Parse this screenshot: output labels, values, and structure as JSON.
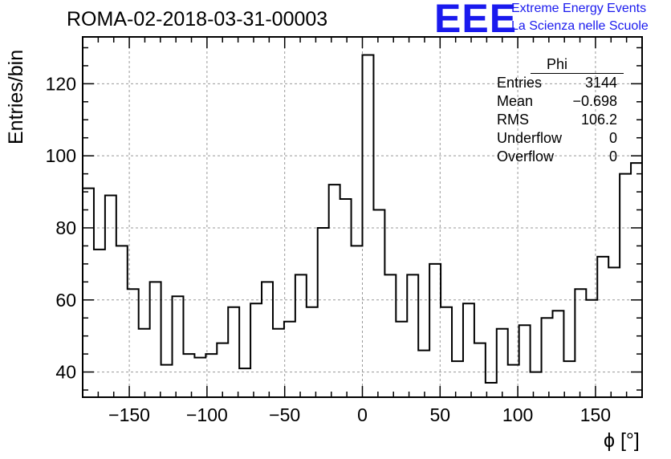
{
  "title": "ROMA-02-2018-03-31-00003",
  "logo": {
    "mark": "EEE",
    "line1": "Extreme Energy Events",
    "line2": "La Scienza nelle Scuole",
    "color": "#1a1aee"
  },
  "stats": {
    "name": "Phi",
    "entries_label": "Entries",
    "entries": "3144",
    "mean_label": "Mean",
    "mean": "−0.698",
    "rms_label": "RMS",
    "rms": "106.2",
    "underflow_label": "Underflow",
    "underflow": "0",
    "overflow_label": "Overflow",
    "overflow": "0"
  },
  "chart_data": {
    "type": "histogram",
    "title": "ROMA-02-2018-03-31-00003",
    "xlabel": "ϕ [°]",
    "ylabel": "Entries/bin",
    "xlim": [
      -180,
      180
    ],
    "ylim": [
      33,
      133
    ],
    "bin_width": 7.2,
    "grid": true,
    "x_ticks": [
      -150,
      -100,
      -50,
      0,
      50,
      100,
      150
    ],
    "x_tick_labels": [
      "−150",
      "−100",
      "−50",
      "0",
      "50",
      "100",
      "150"
    ],
    "y_ticks": [
      40,
      60,
      80,
      100,
      120
    ],
    "y_tick_labels": [
      "40",
      "60",
      "80",
      "100",
      "120"
    ],
    "values": [
      91,
      74,
      89,
      75,
      63,
      52,
      65,
      42,
      61,
      45,
      44,
      45,
      48,
      58,
      41,
      59,
      65,
      52,
      54,
      67,
      58,
      80,
      92,
      88,
      75,
      128,
      85,
      67,
      54,
      67,
      46,
      70,
      58,
      43,
      59,
      48,
      37,
      52,
      42,
      53,
      40,
      55,
      57,
      43,
      63,
      60,
      72,
      69,
      95,
      98
    ]
  }
}
